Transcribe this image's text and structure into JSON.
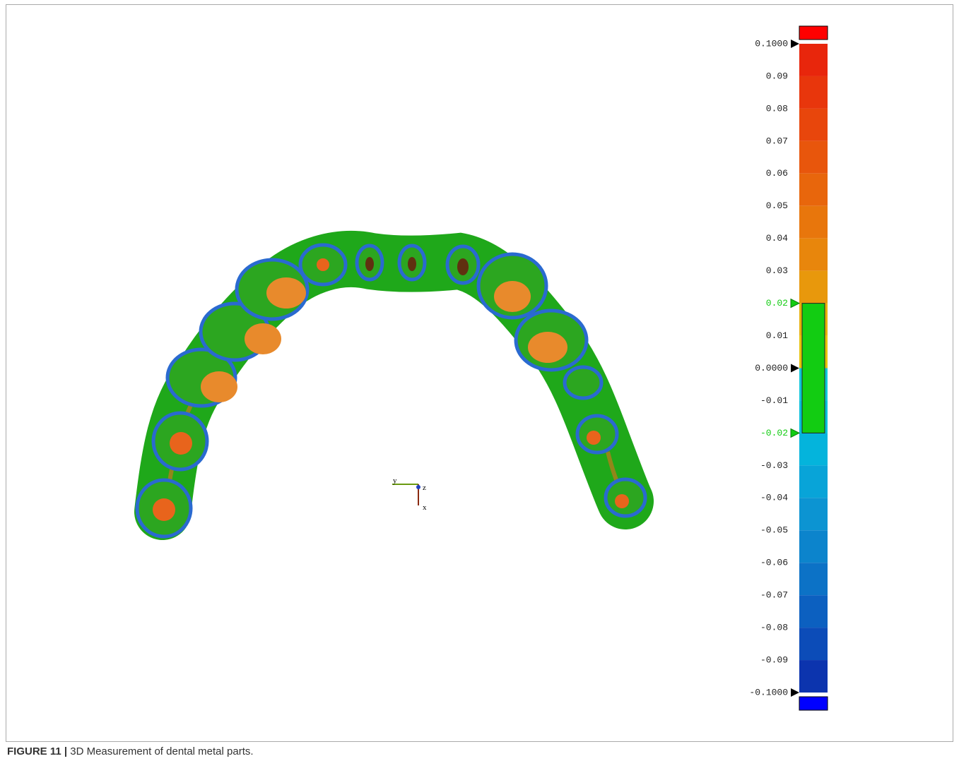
{
  "figure": {
    "label": "FIGURE 11 |",
    "caption": "3D Measurement of dental metal parts."
  },
  "triad": {
    "y": "y",
    "z": "z",
    "x": "x"
  },
  "scale": {
    "ticks": [
      {
        "value": 0.1,
        "label": "0.1000"
      },
      0.09,
      0.08,
      0.07,
      0.06,
      0.05,
      0.04,
      0.03,
      0.02,
      0.01,
      {
        "value": 0,
        "label": "0.0000"
      },
      -0.01,
      -0.02,
      -0.03,
      -0.04,
      -0.05,
      -0.06,
      -0.07,
      -0.08,
      -0.09,
      {
        "value": -0.1,
        "label": "-0.1000"
      }
    ],
    "colors": [
      "#e8260c",
      "#e8360c",
      "#e8460c",
      "#e8560c",
      "#e8660c",
      "#e8760c",
      "#e8860c",
      "#e8980c",
      "#e8b20c",
      "#e8c40c",
      "#10c8dc",
      "#08c0dc",
      "#04b4dc",
      "#08a4d8",
      "#0c94d2",
      "#0c84cc",
      "#0c72c6",
      "#0c60c0",
      "#0c4cb8",
      "#0c34ae"
    ],
    "over_color": "#ff0000",
    "under_color": "#0000ff",
    "markers": [
      0.1,
      0,
      -0.1
    ],
    "tolerance": {
      "upper": 0.02,
      "lower": -0.02,
      "color": "#12cc12"
    }
  }
}
